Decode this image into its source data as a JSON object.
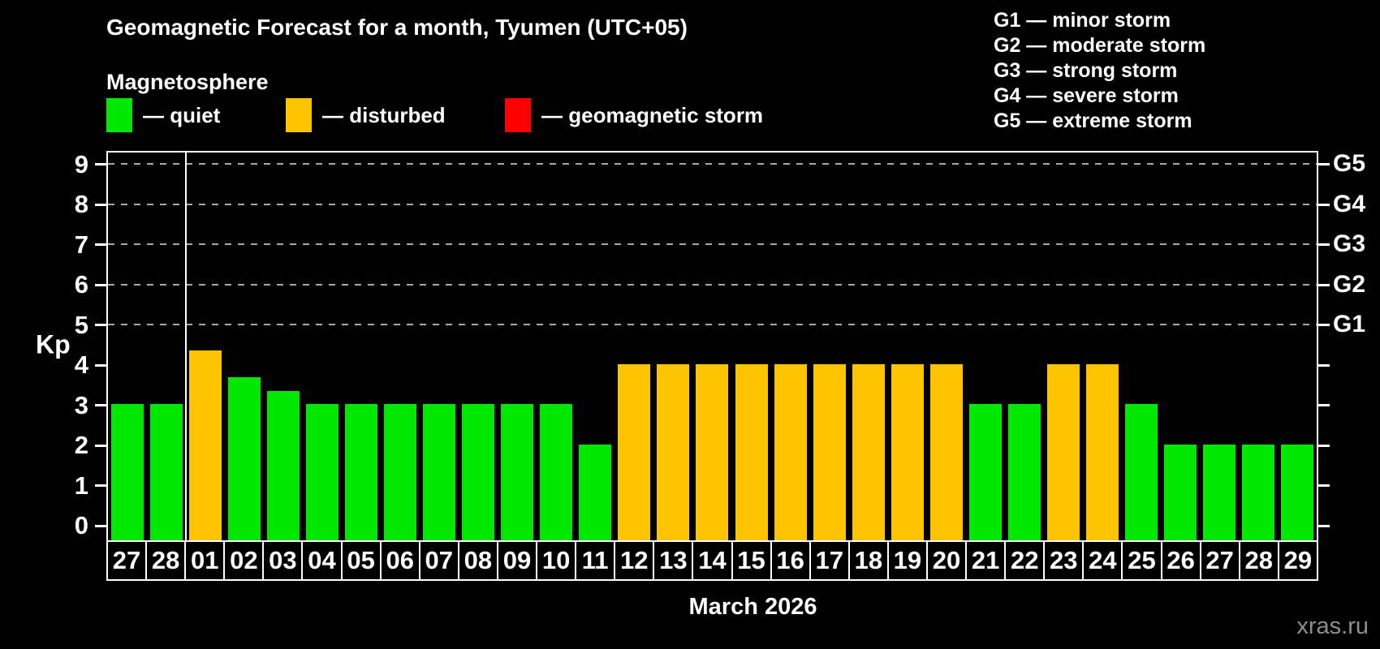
{
  "header": {
    "title": "Geomagnetic Forecast for a month, Tyumen (UTC+05)",
    "subtitle": "Magnetosphere"
  },
  "legend": {
    "items": [
      {
        "name": "quiet",
        "label": "— quiet",
        "color": "#00e800"
      },
      {
        "name": "disturbed",
        "label": "— disturbed",
        "color": "#ffc400"
      },
      {
        "name": "storm",
        "label": "— geomagnetic storm",
        "color": "#ff0000"
      }
    ]
  },
  "storm_scale": {
    "items": [
      "G1 — minor storm",
      "G2 — moderate storm",
      "G3 — strong storm",
      "G4 — severe storm",
      "G5 — extreme storm"
    ]
  },
  "footer": {
    "x_axis_title": "March 2026",
    "watermark": "xras.ru"
  },
  "chart_data": {
    "type": "bar",
    "title": "Geomagnetic Forecast for a month, Tyumen (UTC+05)",
    "subtitle": "Magnetosphere",
    "y_axis_label": "Kp",
    "x_axis_label": "March 2026",
    "y_ticks": [
      0,
      1,
      2,
      3,
      4,
      5,
      6,
      7,
      8,
      9
    ],
    "ylim": [
      0,
      9.6
    ],
    "grid": "horizontal dashed gridlines at Kp 5 through 9",
    "legend_position": "top",
    "right_axis_labels": [
      {
        "kp": 5,
        "label": "G1"
      },
      {
        "kp": 6,
        "label": "G2"
      },
      {
        "kp": 7,
        "label": "G3"
      },
      {
        "kp": 8,
        "label": "G4"
      },
      {
        "kp": 9,
        "label": "G5"
      }
    ],
    "categories": [
      "27",
      "28",
      "01",
      "02",
      "03",
      "04",
      "05",
      "06",
      "07",
      "08",
      "09",
      "10",
      "11",
      "12",
      "13",
      "14",
      "15",
      "16",
      "17",
      "18",
      "19",
      "20",
      "21",
      "22",
      "23",
      "24",
      "25",
      "26",
      "27",
      "28",
      "29"
    ],
    "values": [
      3,
      3,
      4.33,
      3.67,
      3.33,
      3,
      3,
      3,
      3,
      3,
      3,
      3,
      2,
      4,
      4,
      4,
      4,
      4,
      4,
      4,
      4,
      4,
      3,
      3,
      4,
      4,
      3,
      2,
      2,
      2,
      2
    ],
    "statuses": [
      "quiet",
      "quiet",
      "disturbed",
      "quiet",
      "quiet",
      "quiet",
      "quiet",
      "quiet",
      "quiet",
      "quiet",
      "quiet",
      "quiet",
      "quiet",
      "disturbed",
      "disturbed",
      "disturbed",
      "disturbed",
      "disturbed",
      "disturbed",
      "disturbed",
      "disturbed",
      "disturbed",
      "quiet",
      "quiet",
      "disturbed",
      "disturbed",
      "quiet",
      "quiet",
      "quiet",
      "quiet",
      "quiet"
    ],
    "status_colors": {
      "quiet": "#00e800",
      "disturbed": "#ffc400",
      "storm": "#ff0000"
    },
    "month_separator_after_index": 1
  }
}
